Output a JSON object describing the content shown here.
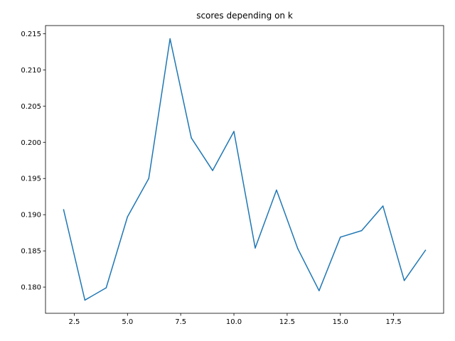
{
  "chart_data": {
    "type": "line",
    "title": "scores depending on k",
    "xlabel": "",
    "ylabel": "",
    "xlim": [
      1.15,
      19.85
    ],
    "ylim": [
      0.17638,
      0.21612
    ],
    "xticks": [
      2.5,
      5.0,
      7.5,
      10.0,
      12.5,
      15.0,
      17.5
    ],
    "xtick_labels": [
      "2.5",
      "5.0",
      "7.5",
      "10.0",
      "12.5",
      "15.0",
      "17.5"
    ],
    "yticks": [
      0.18,
      0.185,
      0.19,
      0.195,
      0.2,
      0.205,
      0.21,
      0.215
    ],
    "ytick_labels": [
      "0.180",
      "0.185",
      "0.190",
      "0.195",
      "0.200",
      "0.205",
      "0.210",
      "0.215"
    ],
    "grid": false,
    "series": [
      {
        "color": "#1f77b4",
        "x": [
          2,
          3,
          4,
          5,
          6,
          7,
          8,
          9,
          10,
          11,
          12,
          13,
          14,
          15,
          16,
          17,
          18,
          19
        ],
        "y": [
          0.1907,
          0.1782,
          0.1799,
          0.1897,
          0.195,
          0.2143,
          0.2006,
          0.1961,
          0.2015,
          0.1854,
          0.1934,
          0.1853,
          0.1795,
          0.1869,
          0.1878,
          0.1912,
          0.1809,
          0.1851
        ]
      }
    ]
  }
}
